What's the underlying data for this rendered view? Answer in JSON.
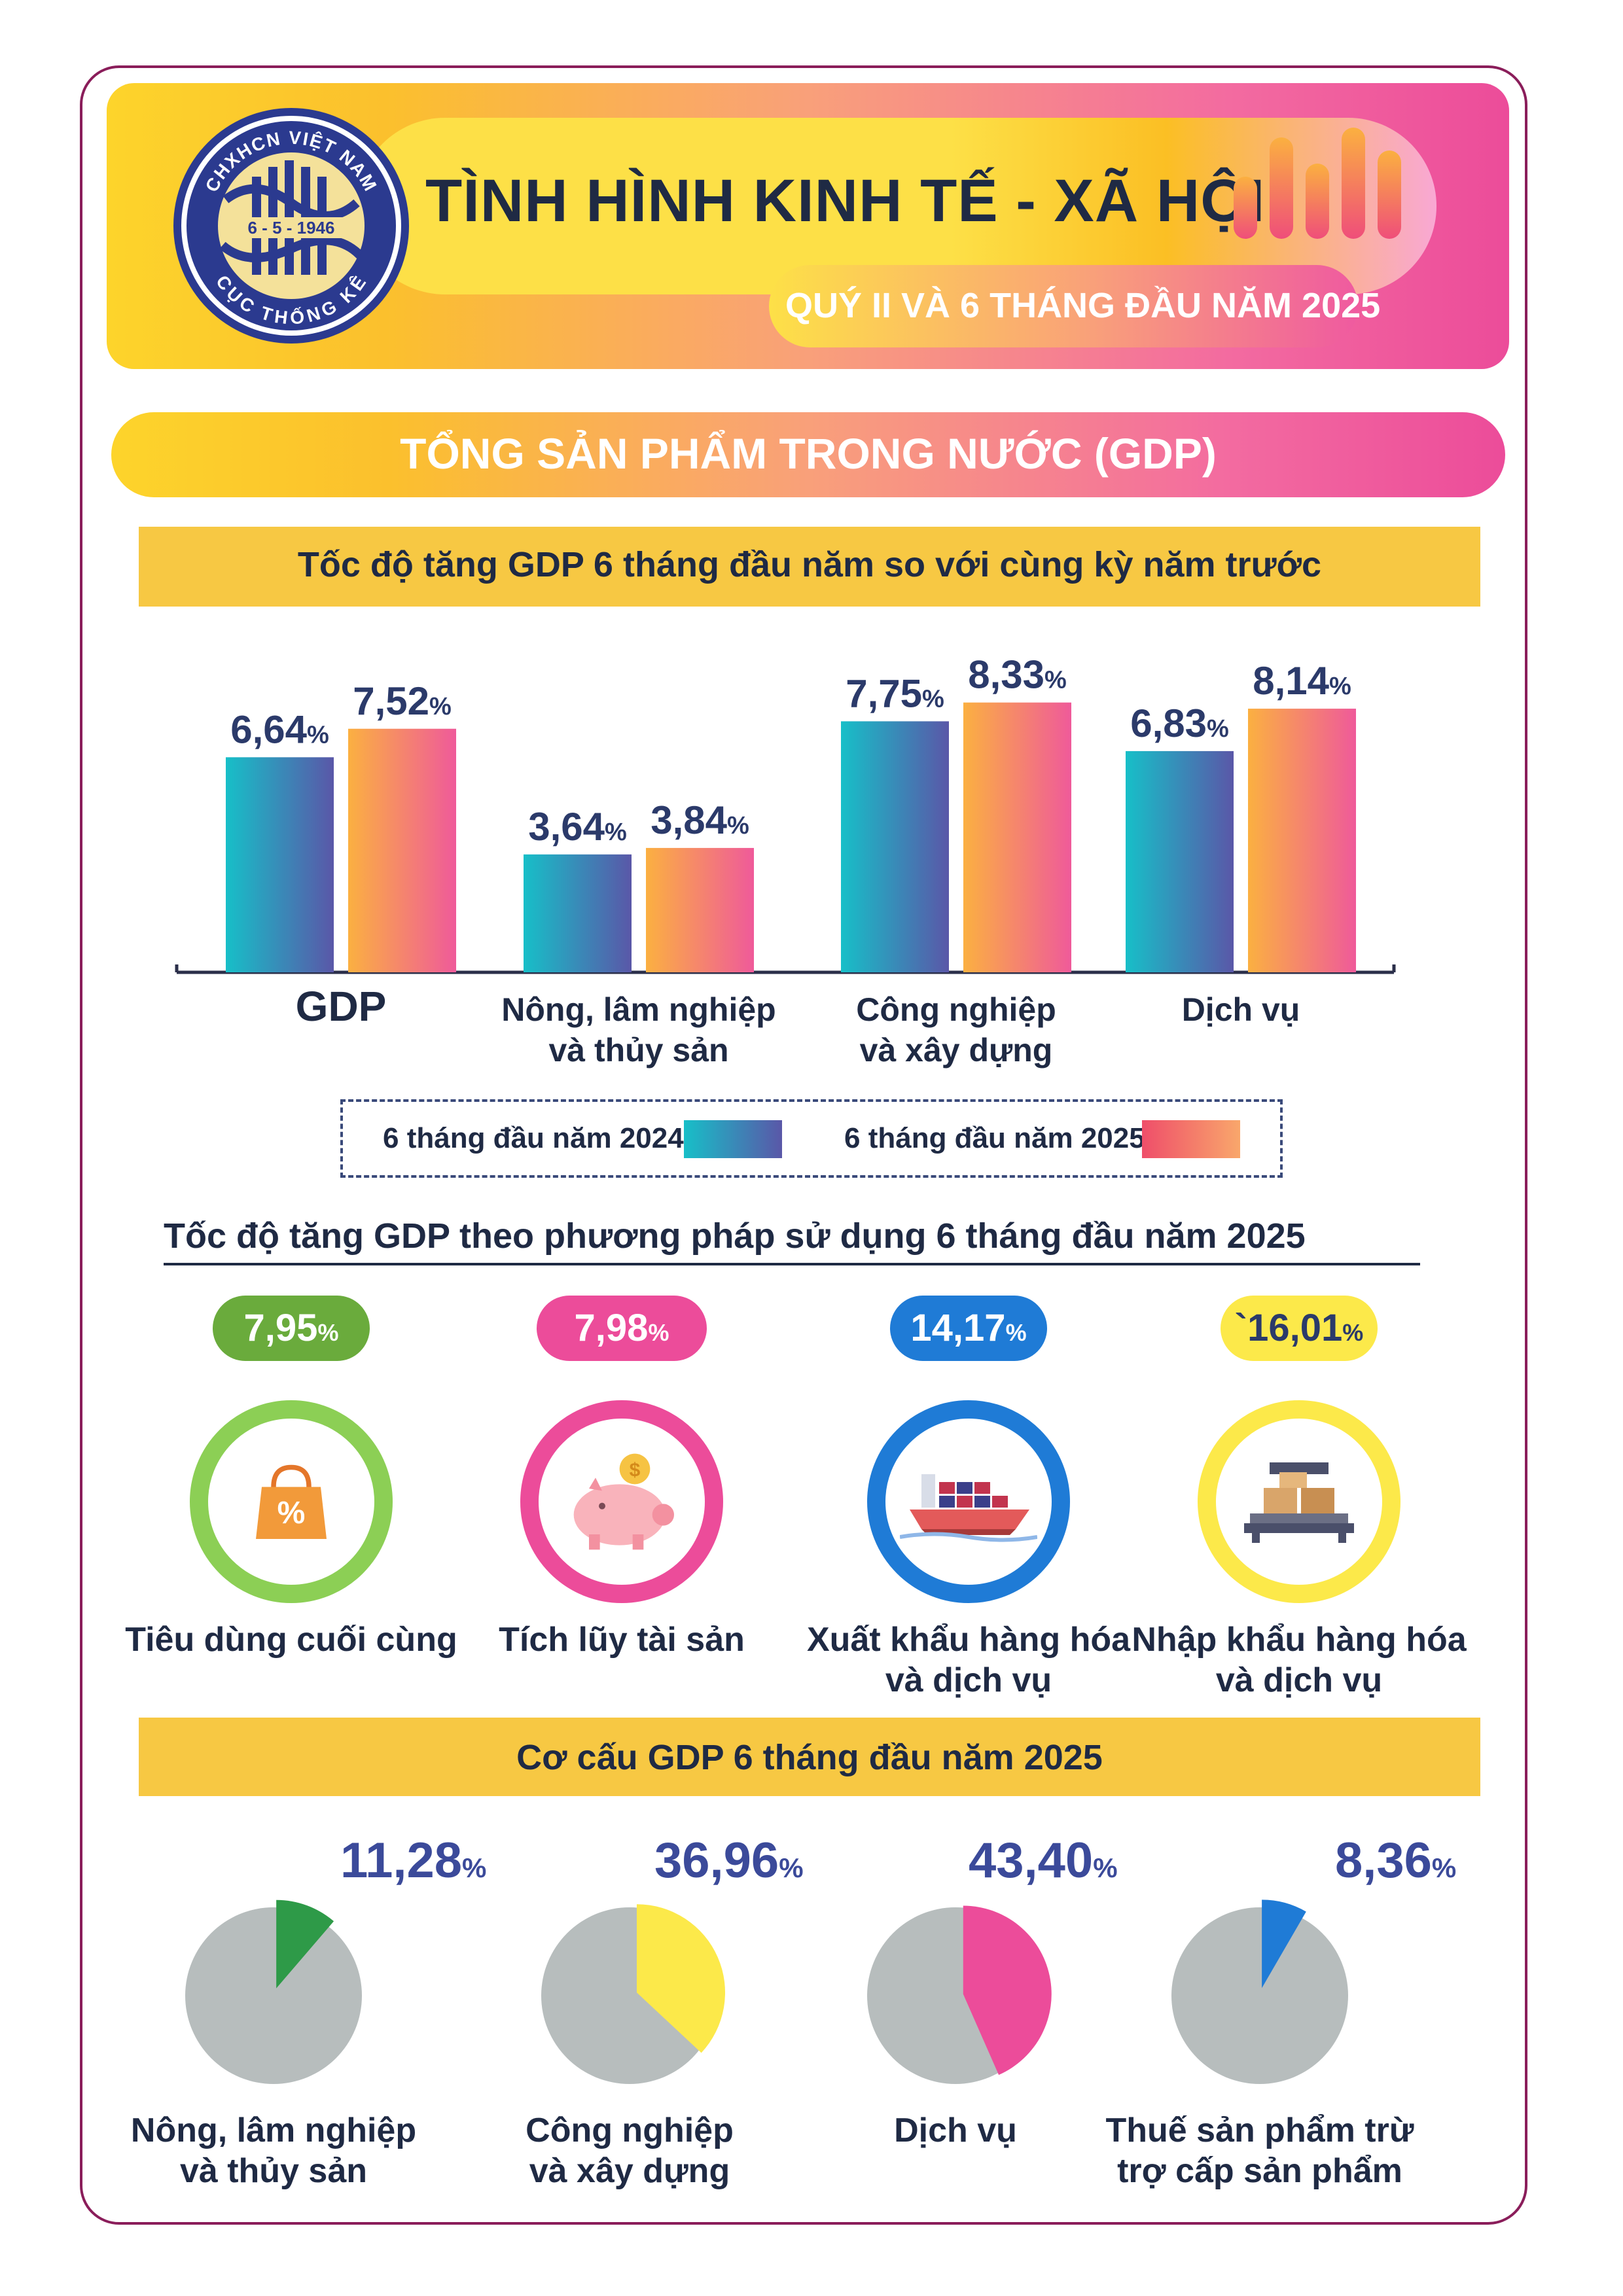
{
  "header": {
    "title": "TÌNH HÌNH KINH TẾ - XÃ HỘI",
    "subtitle": "QUÝ II VÀ 6 THÁNG ĐẦU NĂM 2025",
    "logo": {
      "text_top": "CHXHCN VIỆT NAM",
      "text_date": "6 - 5 - 1946",
      "text_bottom": "CỤC THỐNG KÊ"
    }
  },
  "section_title": "TỔNG SẢN PHẨM TRONG NƯỚC (GDP)",
  "colors": {
    "series_2024": "#22b8cc",
    "series_2025": "#f58a6e",
    "pie_gray": "#b7bdbd",
    "pie_agri": "#2e9a48",
    "pie_industry": "#fce94a",
    "pie_service": "#ec4c9a",
    "pie_tax": "#1f7bd6"
  },
  "chart_data": [
    {
      "type": "bar",
      "title": "Tốc độ tăng GDP 6 tháng đầu năm so với cùng kỳ năm trước",
      "categories": [
        "GDP",
        "Nông, lâm nghiệp\nvà thủy sản",
        "Công nghiệp\nvà xây dựng",
        "Dịch vụ"
      ],
      "series": [
        {
          "name": "6 tháng đầu năm 2024",
          "values": [
            6.64,
            3.64,
            7.75,
            6.83
          ],
          "labels": [
            "6,64",
            "3,64",
            "7,75",
            "6,83"
          ]
        },
        {
          "name": "6 tháng đầu năm 2025",
          "values": [
            7.52,
            3.84,
            8.33,
            8.14
          ],
          "labels": [
            "7,52",
            "3,84",
            "8,33",
            "8,14"
          ]
        }
      ],
      "unit": "%",
      "ylim": [
        0,
        9
      ]
    },
    {
      "type": "table",
      "title": "Tốc độ tăng GDP theo phương pháp sử dụng 6 tháng đầu năm 2025",
      "items": [
        {
          "label": "Tiêu dùng cuối cùng",
          "value": "7,95",
          "color": "#6aab3c",
          "ring": "#8ccf55"
        },
        {
          "label": "Tích lũy tài sản",
          "value": "7,98",
          "color": "#ec4c9a",
          "ring": "#ec4c9a"
        },
        {
          "label": "Xuất khẩu hàng hóa\nvà dịch vụ",
          "value": "14,17",
          "color": "#1f7bd6",
          "ring": "#1f7bd6"
        },
        {
          "label": "Nhập khẩu hàng hóa\nvà dịch vụ",
          "value": "`16,01",
          "color": "#fce94a",
          "ring": "#fce94a"
        }
      ],
      "unit": "%"
    },
    {
      "type": "pie",
      "title": "Cơ cấu GDP 6 tháng đầu năm 2025",
      "slices": [
        {
          "label": "Nông, lâm nghiệp\nvà thủy sản",
          "value": 11.28,
          "text": "11,28"
        },
        {
          "label": "Công nghiệp\nvà xây dựng",
          "value": 36.96,
          "text": "36,96"
        },
        {
          "label": "Dịch vụ",
          "value": 43.4,
          "text": "43,40"
        },
        {
          "label": "Thuế sản phẩm trừ\ntrợ cấp sản phẩm",
          "value": 8.36,
          "text": "8,36"
        }
      ],
      "unit": "%"
    }
  ]
}
